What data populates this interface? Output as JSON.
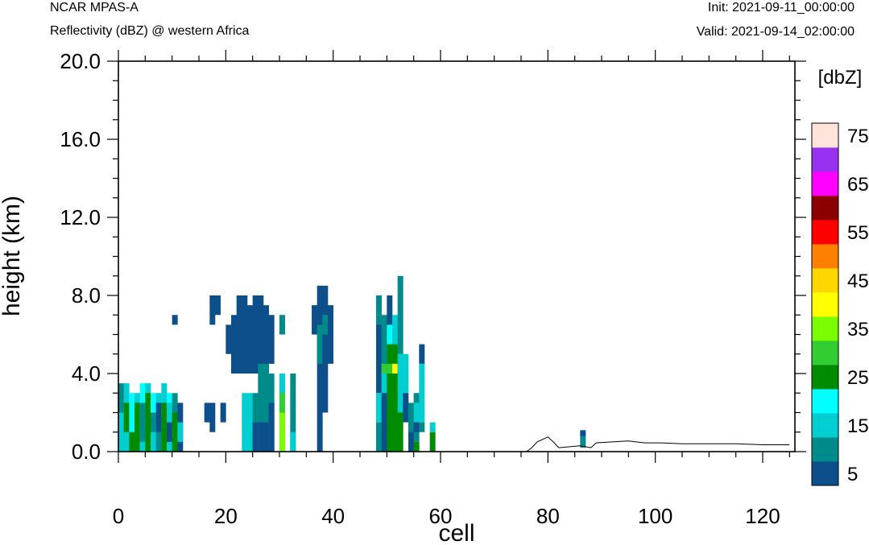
{
  "header": {
    "model_name": "NCAR MPAS-A",
    "field_description": "Reflectivity (dBZ) @ western Africa",
    "init_time": "Init: 2021-09-11_00:00:00",
    "valid_time": "Valid: 2021-09-14_02:00:00"
  },
  "chart_data": {
    "type": "heatmap",
    "xlabel": "cell",
    "ylabel": "height (km)",
    "xlim": [
      0,
      126
    ],
    "ylim": [
      0,
      20
    ],
    "x_ticks": [
      "0",
      "20",
      "40",
      "60",
      "80",
      "100",
      "120"
    ],
    "y_ticks": [
      "0.0",
      "4.0",
      "8.0",
      "12.0",
      "16.0",
      "20.0"
    ],
    "grid": false,
    "colorbar": {
      "title": "[dbZ]",
      "placement": "right",
      "levels": [
        5,
        10,
        15,
        20,
        25,
        30,
        35,
        40,
        45,
        50,
        55,
        60,
        65,
        70,
        75
      ],
      "tick_labels": [
        "5",
        "15",
        "25",
        "35",
        "45",
        "55",
        "65",
        "75"
      ],
      "colors": [
        "#0d4f8b",
        "#008b8b",
        "#00ced1",
        "#00ffff",
        "#008b00",
        "#32cd32",
        "#7cfc00",
        "#ffff00",
        "#ffd700",
        "#ff8000",
        "#ff0000",
        "#8b0000",
        "#ff00ff",
        "#9932f0",
        "#ffe4dc"
      ]
    },
    "cell_height_km": 0.5,
    "cells": [
      {
        "x": 0,
        "y0": 0,
        "y1": 3.5,
        "v": 10
      },
      {
        "x": 0,
        "y0": 0,
        "y1": 2,
        "v": 15
      },
      {
        "x": 1,
        "y0": 0,
        "y1": 3.5,
        "v": 15
      },
      {
        "x": 1,
        "y0": 0,
        "y1": 2.5,
        "v": 25
      },
      {
        "x": 1,
        "y0": 0,
        "y1": 1,
        "v": 15
      },
      {
        "x": 2,
        "y0": 0,
        "y1": 3,
        "v": 20
      },
      {
        "x": 2,
        "y0": 0,
        "y1": 1,
        "v": 25
      },
      {
        "x": 3,
        "y0": 0,
        "y1": 3,
        "v": 15
      },
      {
        "x": 3,
        "y0": 0,
        "y1": 2.5,
        "v": 25
      },
      {
        "x": 4,
        "y0": 0,
        "y1": 3.5,
        "v": 20
      },
      {
        "x": 4,
        "y0": 0.5,
        "y1": 2.5,
        "v": 10
      },
      {
        "x": 4,
        "y0": 0,
        "y1": 0.5,
        "v": 15
      },
      {
        "x": 5,
        "y0": 0,
        "y1": 3.5,
        "v": 15
      },
      {
        "x": 5,
        "y0": 0,
        "y1": 3,
        "v": 25
      },
      {
        "x": 6,
        "y0": 0,
        "y1": 3,
        "v": 20
      },
      {
        "x": 6,
        "y0": 0,
        "y1": 2,
        "v": 10
      },
      {
        "x": 6,
        "y0": 0,
        "y1": 1,
        "v": 15
      },
      {
        "x": 7,
        "y0": 0,
        "y1": 3,
        "v": 15
      },
      {
        "x": 7,
        "y0": 1,
        "y1": 2.5,
        "v": 5
      },
      {
        "x": 7,
        "y0": 0,
        "y1": 1,
        "v": 10
      },
      {
        "x": 8,
        "y0": 0,
        "y1": 3.5,
        "v": 15
      },
      {
        "x": 8,
        "y0": 0,
        "y1": 2.5,
        "v": 25
      },
      {
        "x": 9,
        "y0": 0,
        "y1": 3,
        "v": 20
      },
      {
        "x": 9,
        "y0": 0,
        "y1": 2.5,
        "v": 15
      },
      {
        "x": 9,
        "y0": 0.5,
        "y1": 1.5,
        "v": 5
      },
      {
        "x": 10,
        "y0": 0,
        "y1": 3,
        "v": 10
      },
      {
        "x": 10,
        "y0": 0,
        "y1": 2,
        "v": 25
      },
      {
        "x": 10,
        "y0": 6.5,
        "y1": 7,
        "v": 5
      },
      {
        "x": 11,
        "y0": 0,
        "y1": 2.5,
        "v": 5
      },
      {
        "x": 11,
        "y0": 0.5,
        "y1": 1.5,
        "v": 15
      },
      {
        "x": 16,
        "y0": 1.5,
        "y1": 2.5,
        "v": 5
      },
      {
        "x": 17,
        "y0": 1,
        "y1": 2.5,
        "v": 5
      },
      {
        "x": 17,
        "y0": 6.5,
        "y1": 8,
        "v": 5
      },
      {
        "x": 18,
        "y0": 7,
        "y1": 8,
        "v": 5
      },
      {
        "x": 19,
        "y0": 1.5,
        "y1": 2.5,
        "v": 5
      },
      {
        "x": 20,
        "y0": 5,
        "y1": 6.5,
        "v": 5
      },
      {
        "x": 21,
        "y0": 4,
        "y1": 7,
        "v": 5
      },
      {
        "x": 22,
        "y0": 4,
        "y1": 8,
        "v": 5
      },
      {
        "x": 23,
        "y0": 4,
        "y1": 8,
        "v": 5
      },
      {
        "x": 23,
        "y0": 0,
        "y1": 3,
        "v": 15
      },
      {
        "x": 24,
        "y0": 4,
        "y1": 7.5,
        "v": 5
      },
      {
        "x": 24,
        "y0": 0,
        "y1": 3,
        "v": 15
      },
      {
        "x": 25,
        "y0": 4,
        "y1": 8,
        "v": 5
      },
      {
        "x": 25,
        "y0": 0,
        "y1": 3,
        "v": 10
      },
      {
        "x": 25,
        "y0": 0,
        "y1": 1.5,
        "v": 5
      },
      {
        "x": 26,
        "y0": 4,
        "y1": 8,
        "v": 5
      },
      {
        "x": 26,
        "y0": 0,
        "y1": 4.5,
        "v": 10
      },
      {
        "x": 26,
        "y0": 0,
        "y1": 1.5,
        "v": 5
      },
      {
        "x": 27,
        "y0": 4,
        "y1": 7.5,
        "v": 5
      },
      {
        "x": 27,
        "y0": 0,
        "y1": 4.5,
        "v": 10
      },
      {
        "x": 27,
        "y0": 0,
        "y1": 1.5,
        "v": 5
      },
      {
        "x": 28,
        "y0": 4.5,
        "y1": 7,
        "v": 5
      },
      {
        "x": 28,
        "y0": 0,
        "y1": 4,
        "v": 10
      },
      {
        "x": 28,
        "y0": 0,
        "y1": 2.5,
        "v": 5
      },
      {
        "x": 30,
        "y0": 0,
        "y1": 4,
        "v": 15
      },
      {
        "x": 30,
        "y0": 0,
        "y1": 2,
        "v": 35
      },
      {
        "x": 30,
        "y0": 2,
        "y1": 3,
        "v": 30
      },
      {
        "x": 30,
        "y0": 6,
        "y1": 7,
        "v": 10
      },
      {
        "x": 32,
        "y0": 0,
        "y1": 4,
        "v": 10
      },
      {
        "x": 32,
        "y0": 0,
        "y1": 1,
        "v": 15
      },
      {
        "x": 36,
        "y0": 6,
        "y1": 7.5,
        "v": 5
      },
      {
        "x": 37,
        "y0": 0,
        "y1": 8.5,
        "v": 5
      },
      {
        "x": 37,
        "y0": 4.5,
        "y1": 6.5,
        "v": 10
      },
      {
        "x": 38,
        "y0": 2,
        "y1": 8.5,
        "v": 5
      },
      {
        "x": 38,
        "y0": 6,
        "y1": 7,
        "v": 10
      },
      {
        "x": 39,
        "y0": 4.5,
        "y1": 7.5,
        "v": 5
      },
      {
        "x": 48,
        "y0": 3,
        "y1": 7,
        "v": 5
      },
      {
        "x": 48,
        "y0": 1.5,
        "y1": 3,
        "v": 15
      },
      {
        "x": 48,
        "y0": 0,
        "y1": 1.5,
        "v": 10
      },
      {
        "x": 48,
        "y0": 6.5,
        "y1": 8,
        "v": 10
      },
      {
        "x": 49,
        "y0": 3.5,
        "y1": 7,
        "v": 10
      },
      {
        "x": 49,
        "y0": 4,
        "y1": 4.5,
        "v": 30
      },
      {
        "x": 49,
        "y0": 0,
        "y1": 4,
        "v": 15
      },
      {
        "x": 49,
        "y0": 0,
        "y1": 3,
        "v": 5
      },
      {
        "x": 50,
        "y0": 5.5,
        "y1": 8,
        "v": 5
      },
      {
        "x": 50,
        "y0": 4.5,
        "y1": 6.5,
        "v": 20
      },
      {
        "x": 50,
        "y0": 0,
        "y1": 5.5,
        "v": 25
      },
      {
        "x": 50,
        "y0": 4,
        "y1": 4.5,
        "v": 30
      },
      {
        "x": 51,
        "y0": 5.5,
        "y1": 7,
        "v": 15
      },
      {
        "x": 51,
        "y0": 0,
        "y1": 5.5,
        "v": 25
      },
      {
        "x": 51,
        "y0": 4,
        "y1": 4.5,
        "v": 40
      },
      {
        "x": 52,
        "y0": 8,
        "y1": 9,
        "v": 10
      },
      {
        "x": 52,
        "y0": 5,
        "y1": 8,
        "v": 10
      },
      {
        "x": 52,
        "y0": 0,
        "y1": 5,
        "v": 25
      },
      {
        "x": 52,
        "y0": 2,
        "y1": 5,
        "v": 15
      },
      {
        "x": 53,
        "y0": 3,
        "y1": 5,
        "v": 15
      },
      {
        "x": 53,
        "y0": 1.5,
        "y1": 3,
        "v": 5
      },
      {
        "x": 54,
        "y0": 0.5,
        "y1": 2.5,
        "v": 10
      },
      {
        "x": 54,
        "y0": 0,
        "y1": 1,
        "v": 5
      },
      {
        "x": 55,
        "y0": 0.5,
        "y1": 3,
        "v": 10
      },
      {
        "x": 55,
        "y0": 1.5,
        "y1": 2.5,
        "v": 15
      },
      {
        "x": 55,
        "y0": 0,
        "y1": 0.5,
        "v": 25
      },
      {
        "x": 55,
        "y0": 1,
        "y1": 1.5,
        "v": 5
      },
      {
        "x": 56,
        "y0": 4.5,
        "y1": 5.5,
        "v": 5
      },
      {
        "x": 56,
        "y0": 1.5,
        "y1": 4.5,
        "v": 15
      },
      {
        "x": 56,
        "y0": 1,
        "y1": 1.5,
        "v": 10
      },
      {
        "x": 58,
        "y0": 0,
        "y1": 1,
        "v": 25
      },
      {
        "x": 58,
        "y0": 1,
        "y1": 1.5,
        "v": 15
      },
      {
        "x": 86,
        "y0": 0.2,
        "y1": 1,
        "v": 10
      },
      {
        "x": 86,
        "y0": 0.8,
        "y1": 1.1,
        "v": 5
      }
    ],
    "terrain_km": [
      [
        0,
        0
      ],
      [
        76,
        0
      ],
      [
        77,
        0.2
      ],
      [
        78,
        0.5
      ],
      [
        80,
        0.75
      ],
      [
        81,
        0.5
      ],
      [
        82,
        0.2
      ],
      [
        86,
        0.3
      ],
      [
        88,
        0.2
      ],
      [
        89,
        0.45
      ],
      [
        92,
        0.5
      ],
      [
        95,
        0.55
      ],
      [
        98,
        0.45
      ],
      [
        101,
        0.45
      ],
      [
        105,
        0.4
      ],
      [
        110,
        0.4
      ],
      [
        115,
        0.4
      ],
      [
        120,
        0.35
      ],
      [
        125,
        0.35
      ]
    ]
  }
}
